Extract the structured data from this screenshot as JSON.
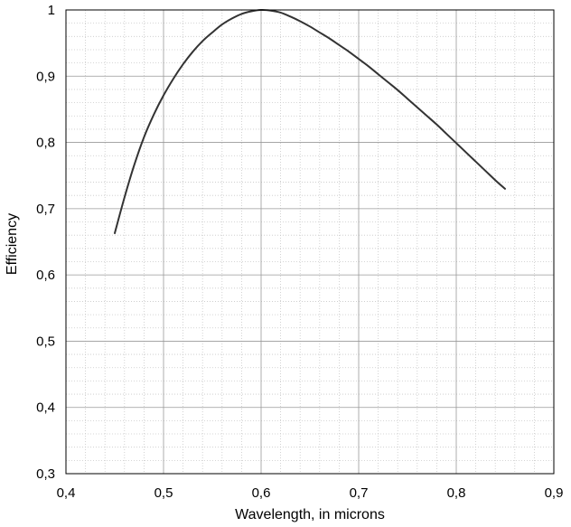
{
  "chart_data": {
    "type": "line",
    "title": "",
    "xlabel": "Wavelength, in microns",
    "ylabel": "Efficiency",
    "xlim": [
      0.4,
      0.9
    ],
    "ylim": [
      0.3,
      1.0
    ],
    "grid": true,
    "minor_grid": true,
    "x_ticks": [
      0.4,
      0.5,
      0.6,
      0.7,
      0.8,
      0.9
    ],
    "y_ticks": [
      0.3,
      0.4,
      0.5,
      0.6,
      0.7,
      0.8,
      0.9,
      1.0
    ],
    "x_tick_labels": [
      "0,4",
      "0,5",
      "0,6",
      "0,7",
      "0,8",
      "0,9"
    ],
    "y_tick_labels": [
      "0,3",
      "0,4",
      "0,5",
      "0,6",
      "0,7",
      "0,8",
      "0,9",
      "1"
    ],
    "colors": {
      "line": "#333333",
      "major_grid": "#999999",
      "minor_grid": "#c8c8c8",
      "frame": "#000000"
    },
    "series": [
      {
        "x": [
          0.45,
          0.46,
          0.47,
          0.48,
          0.49,
          0.5,
          0.51,
          0.52,
          0.53,
          0.54,
          0.55,
          0.56,
          0.57,
          0.58,
          0.59,
          0.6,
          0.61,
          0.62,
          0.63,
          0.64,
          0.65,
          0.66,
          0.67,
          0.68,
          0.69,
          0.7,
          0.71,
          0.72,
          0.73,
          0.74,
          0.75,
          0.76,
          0.77,
          0.78,
          0.79,
          0.8,
          0.81,
          0.82,
          0.83,
          0.84,
          0.85
        ],
        "y": [
          0.663,
          0.717,
          0.766,
          0.808,
          0.842,
          0.871,
          0.896,
          0.918,
          0.937,
          0.953,
          0.966,
          0.978,
          0.987,
          0.994,
          0.998,
          1.0,
          0.999,
          0.996,
          0.99,
          0.983,
          0.975,
          0.966,
          0.957,
          0.947,
          0.937,
          0.926,
          0.915,
          0.903,
          0.891,
          0.879,
          0.866,
          0.853,
          0.84,
          0.827,
          0.813,
          0.799,
          0.785,
          0.771,
          0.757,
          0.743,
          0.73
        ]
      }
    ]
  }
}
